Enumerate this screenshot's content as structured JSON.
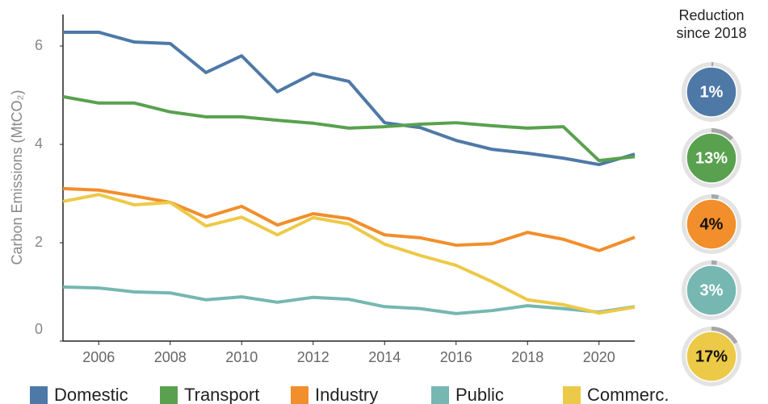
{
  "chart_data": {
    "type": "line",
    "y_label": "Carbon Emissions (MtCO₂)",
    "x": [
      2005,
      2006,
      2007,
      2008,
      2009,
      2010,
      2011,
      2012,
      2013,
      2014,
      2015,
      2016,
      2017,
      2018,
      2019,
      2020,
      2021
    ],
    "xlim": [
      2005,
      2021
    ],
    "xticks": [
      2006,
      2008,
      2010,
      2012,
      2014,
      2016,
      2018,
      2020
    ],
    "ylim": [
      0,
      6.64
    ],
    "yticks": [
      0,
      2,
      4,
      6
    ],
    "series": [
      {
        "name": "Domestic",
        "color": "#4e79a7",
        "values": [
          6.28,
          6.28,
          6.08,
          6.05,
          5.46,
          5.8,
          5.07,
          5.44,
          5.28,
          4.44,
          4.34,
          4.08,
          3.9,
          3.82,
          3.72,
          3.59,
          3.8
        ]
      },
      {
        "name": "Transport",
        "color": "#59a14f",
        "values": [
          4.97,
          4.84,
          4.84,
          4.66,
          4.56,
          4.56,
          4.49,
          4.43,
          4.33,
          4.36,
          4.41,
          4.44,
          4.38,
          4.33,
          4.36,
          3.67,
          3.75
        ]
      },
      {
        "name": "Industry",
        "color": "#f28e2b",
        "values": [
          3.1,
          3.07,
          2.95,
          2.82,
          2.52,
          2.74,
          2.36,
          2.59,
          2.49,
          2.16,
          2.1,
          1.95,
          1.98,
          2.21,
          2.07,
          1.84,
          2.11
        ]
      },
      {
        "name": "Public",
        "color": "#76b7b2",
        "values": [
          1.1,
          1.08,
          1.0,
          0.98,
          0.84,
          0.9,
          0.79,
          0.89,
          0.85,
          0.7,
          0.66,
          0.56,
          0.62,
          0.72,
          0.66,
          0.59,
          0.7
        ]
      },
      {
        "name": "Commerc.",
        "color": "#edc948",
        "values": [
          2.84,
          2.98,
          2.77,
          2.82,
          2.34,
          2.52,
          2.16,
          2.51,
          2.38,
          1.97,
          1.74,
          1.54,
          1.21,
          0.84,
          0.74,
          0.57,
          0.69
        ]
      }
    ],
    "reductions": {
      "title": "Reduction since 2018",
      "values": [
        1,
        13,
        4,
        3,
        17
      ],
      "value_labels": [
        "1%",
        "13%",
        "4%",
        "3%",
        "17%"
      ]
    }
  }
}
